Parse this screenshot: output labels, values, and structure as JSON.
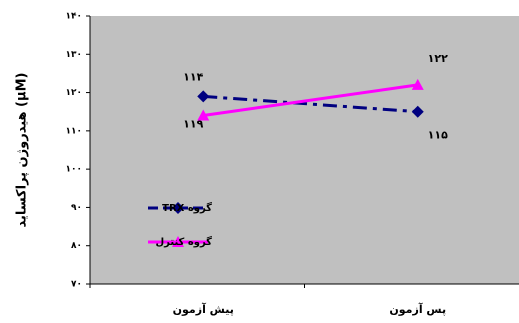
{
  "chart_data": {
    "type": "line",
    "y_label": "هیدروژن پراکساید (μM)",
    "categories": [
      "پیش آزمون",
      "پس آزمون"
    ],
    "series": [
      {
        "name": "گروه TRX",
        "color": "#000080",
        "dash": true,
        "marker": "diamond",
        "values": [
          119,
          115
        ],
        "value_labels": [
          "۱۱۹",
          "۱۱۵"
        ]
      },
      {
        "name": "گروه کنترل",
        "color": "#ff00ff",
        "dash": false,
        "marker": "triangle",
        "values": [
          114,
          122
        ],
        "value_labels": [
          "۱۱۴",
          "۱۲۲"
        ]
      }
    ],
    "ylim": [
      70,
      140
    ],
    "yticks": [
      {
        "value": 70,
        "label": "۷۰"
      },
      {
        "value": 80,
        "label": "۸۰"
      },
      {
        "value": 90,
        "label": "۹۰"
      },
      {
        "value": 100,
        "label": "۱۰۰"
      },
      {
        "value": 110,
        "label": "۱۱۰"
      },
      {
        "value": 120,
        "label": "۱۲۰"
      },
      {
        "value": 130,
        "label": "۱۳۰"
      },
      {
        "value": 140,
        "label": "۱۴۰"
      }
    ],
    "plot_background": "#c0c0c0",
    "grid": false
  }
}
